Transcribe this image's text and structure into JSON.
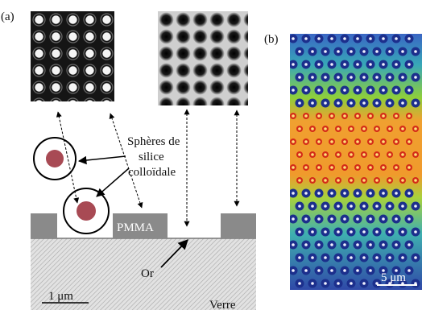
{
  "panels": {
    "a": {
      "label": "(a)"
    },
    "b": {
      "label": "(b)"
    }
  },
  "annotations": {
    "spheres_line1": "Sphères de",
    "spheres_line2": "silice",
    "spheres_line3": "colloïdale",
    "pmma": "PMMA",
    "gold": "Or",
    "glass": "Verre"
  },
  "scale_bars": {
    "a": "1 μm",
    "b": "5 μm"
  },
  "colors": {
    "substrate": "#d8d8d8",
    "pmma_block": "#8a8a8a",
    "sphere_core": "#b24a55",
    "map_blue": "#2f49a8",
    "map_orange": "#f0a030",
    "map_green": "#8fcf3a"
  }
}
